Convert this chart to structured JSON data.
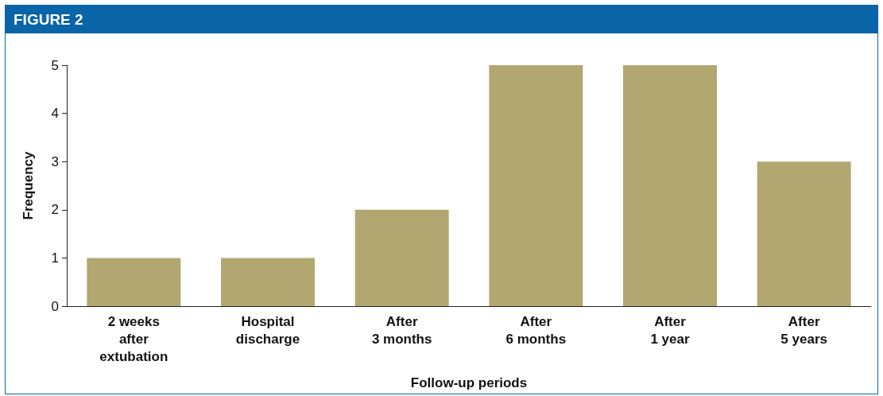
{
  "chart_data": {
    "type": "bar",
    "title": "FIGURE 2",
    "xlabel": "Follow-up periods",
    "ylabel": "Frequency",
    "categories": [
      "2 weeks\nafter\nextubation",
      "Hospital\ndischarge",
      "After\n3 months",
      "After\n6 months",
      "After\n1 year",
      "After\n5 years"
    ],
    "values": [
      1,
      1,
      2,
      5,
      5,
      3
    ],
    "color": "#b2a771",
    "ylim": [
      0,
      5
    ],
    "yticks": [
      0,
      1,
      2,
      3,
      4,
      5
    ],
    "grid": false
  }
}
